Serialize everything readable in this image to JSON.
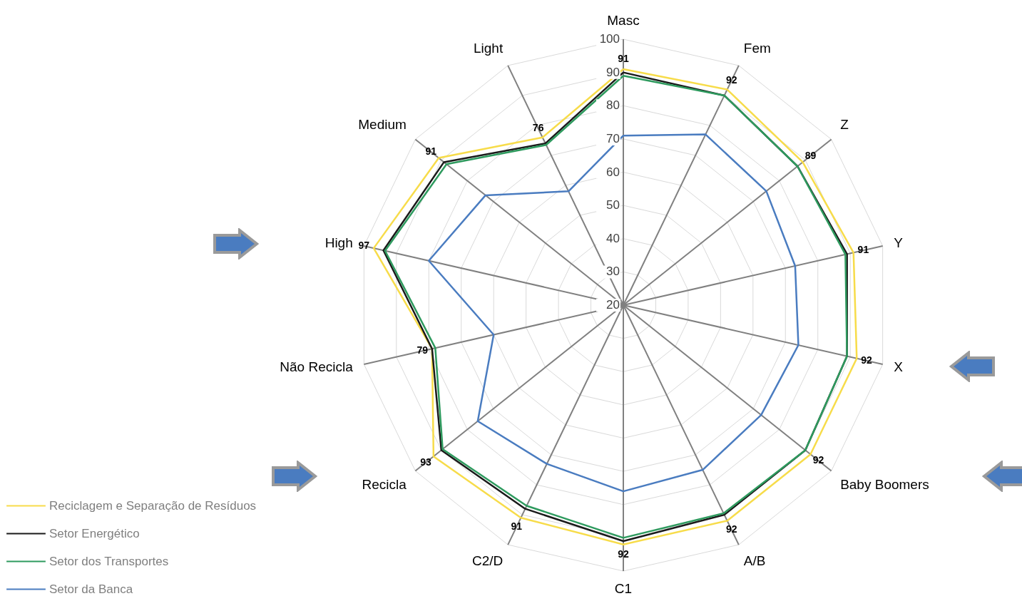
{
  "chart_data": {
    "type": "radar",
    "categories": [
      "Masc",
      "Fem",
      "Z",
      "Y",
      "X",
      "Baby Boomers",
      "A/B",
      "C1",
      "C2/D",
      "Recicla",
      "Não Recicla",
      "High",
      "Medium",
      "Light"
    ],
    "series": [
      {
        "name": "Reciclagem e Separação de Resíduos",
        "color": "#f7dc4a",
        "values": [
          91,
          92,
          89,
          91,
          92,
          92,
          92,
          92,
          91,
          93,
          79,
          97,
          91,
          76
        ],
        "value_labels": [
          "91",
          "92",
          "89",
          "91",
          "92",
          "92",
          "92",
          "92",
          "91",
          "93",
          "79",
          "97",
          "91",
          "76"
        ]
      },
      {
        "name": "Setor Energético",
        "color": "#1a1a1a",
        "values": [
          90,
          90,
          87,
          89,
          89,
          90,
          90,
          91,
          88,
          90,
          79,
          94,
          89,
          74
        ]
      },
      {
        "name": "Setor dos Transportes",
        "color": "#2e9a5e",
        "values": [
          89,
          90,
          87,
          88.5,
          89,
          90,
          89.5,
          90,
          87,
          89.5,
          78,
          93.5,
          88,
          73.5
        ]
      },
      {
        "name": "Setor da Banca",
        "color": "#4a7cc0",
        "values": [
          71,
          77,
          75,
          73,
          74,
          73,
          75,
          76,
          73,
          76,
          60,
          80,
          73,
          58
        ]
      }
    ],
    "ylim": [
      20,
      100
    ],
    "yticks": [
      20,
      30,
      40,
      50,
      60,
      70,
      80,
      90,
      100
    ],
    "grid": true,
    "legend": "bottom left"
  }
}
